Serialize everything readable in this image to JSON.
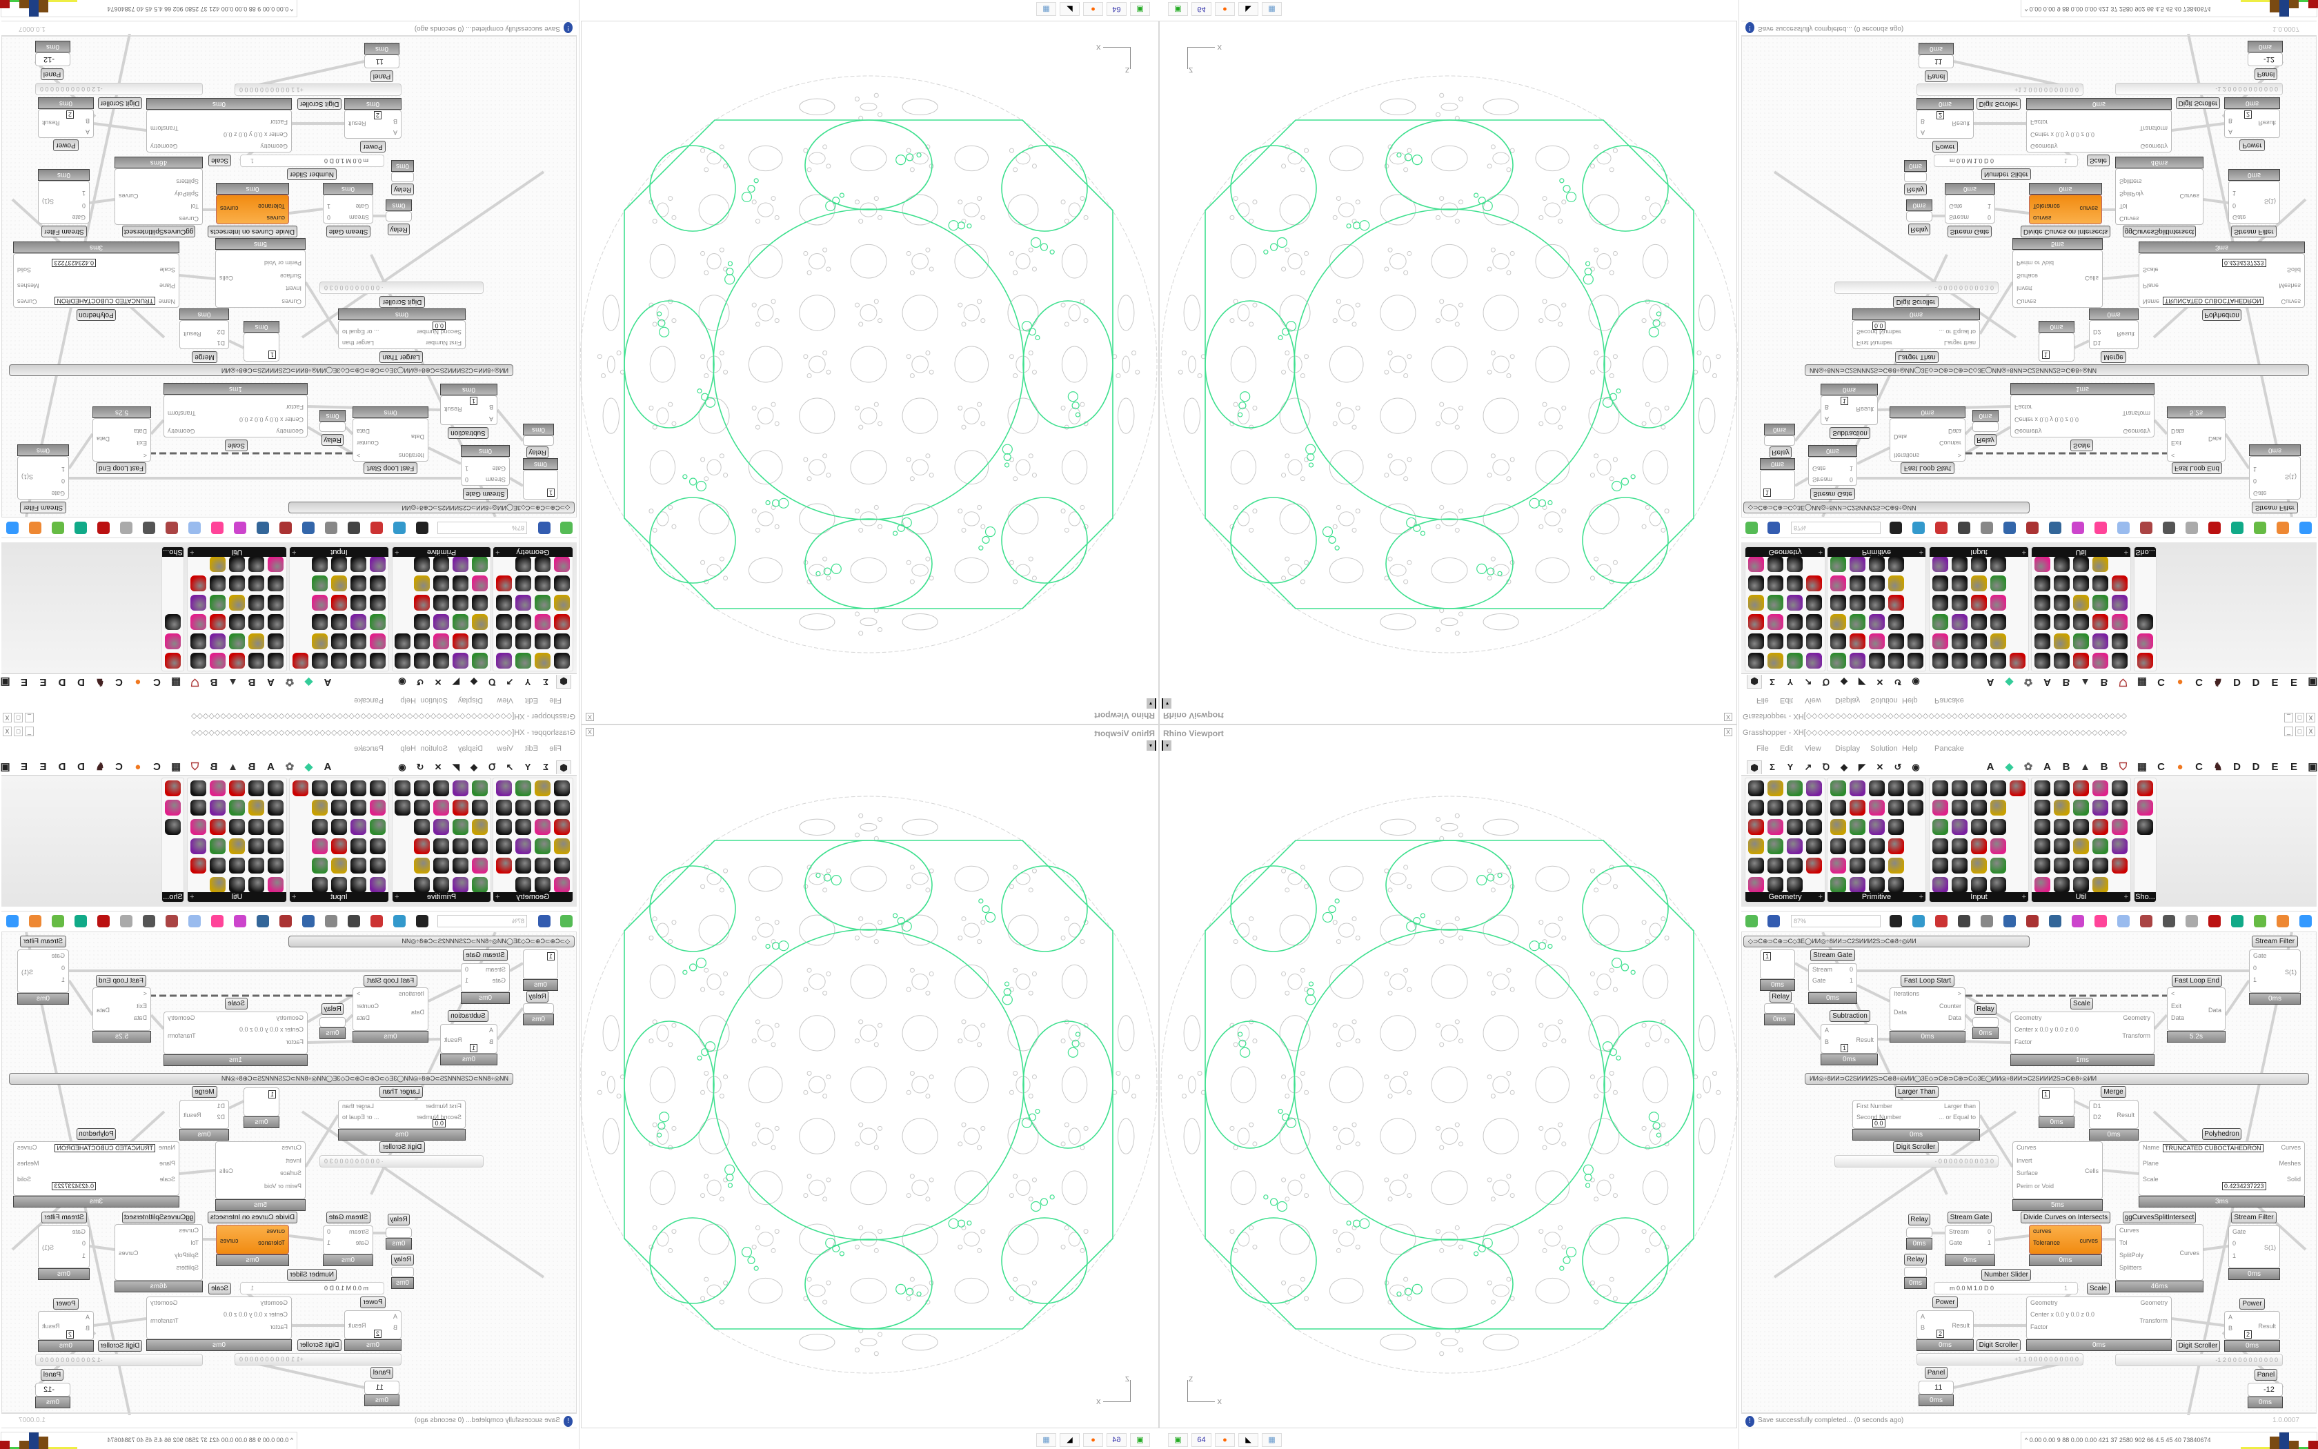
{
  "viewport": {
    "title": "Rhino Viewport",
    "close": "X",
    "dropdown": "▾",
    "axis_z": "Z",
    "axis_x": "X"
  },
  "taskbar": {
    "icons": [
      {
        "name": "terminal-icon",
        "glyph": "▣",
        "color": "#2a2"
      },
      {
        "name": "floppy-icon",
        "glyph": "64",
        "color": "#33a"
      },
      {
        "name": "firefox-icon",
        "glyph": "●",
        "color": "#f60"
      },
      {
        "name": "rhino-icon",
        "glyph": "◣",
        "color": "#000"
      },
      {
        "name": "calculator-icon",
        "glyph": "▦",
        "color": "#69c"
      }
    ]
  },
  "gh": {
    "title": "Grasshopper - XH[◇◇◇◇◇◇◇◇◇◇◇◇◇◇◇◇◇◇◇◇◇◇◇◇◇◇◇◇◇◇◇◇◇◇◇◇◇◇◇◇◇◇◇◇◇◇◇◇◇◇◇◇◇◇◇",
    "window_buttons": [
      "_",
      "□",
      "X"
    ],
    "menu": [
      "File",
      "Edit",
      "View",
      "Display",
      "Solution",
      "Help",
      "Pancake"
    ],
    "tab_icons": [
      "params-icon",
      "maths-icon",
      "sets-icon",
      "vector-icon",
      "curve-icon",
      "surface-icon",
      "mesh-icon",
      "intersect-icon",
      "transform-icon",
      "display-icon"
    ],
    "tab_icon_glyphs": [
      "⬢",
      "Σ",
      "Y",
      "↗",
      "Ꝺ",
      "◆",
      "◤",
      "✕",
      "↺",
      "◉"
    ],
    "tabs_right": [
      {
        "label": "A"
      },
      {
        "icon": "leaf-icon",
        "glyph": "◆",
        "color": "#3c9"
      },
      {
        "icon": "spider-icon",
        "glyph": "✿",
        "color": "#666"
      },
      {
        "label": "A"
      },
      {
        "label": "B"
      },
      {
        "icon": "terrain-icon",
        "glyph": "▲",
        "color": "#333"
      },
      {
        "label": "B"
      },
      {
        "icon": "shield-icon",
        "glyph": "⛉",
        "color": "#a33"
      },
      {
        "icon": "grid-icon",
        "glyph": "▦",
        "color": "#333"
      },
      {
        "label": "C"
      },
      {
        "icon": "orange-dot-icon",
        "glyph": "●",
        "color": "#f07820"
      },
      {
        "label": "C"
      },
      {
        "icon": "rooster-icon",
        "glyph": "♞",
        "color": "#422"
      },
      {
        "label": "D"
      },
      {
        "label": "D"
      },
      {
        "label": "E"
      },
      {
        "label": "E"
      },
      {
        "icon": "frame-icon",
        "glyph": "▣",
        "color": "#222"
      }
    ],
    "ribbon_panels": [
      "Geometry",
      "Primitive",
      "Input",
      "Util",
      "Sho..."
    ],
    "ribbon_panel_expand": "+",
    "toolbar": {
      "zoom": "87%"
    },
    "canvas": {
      "groups": [
        "◇⊃C⊕⊃C⊕⊃C◇3E◯ИИ◎÷8ИИ⊃C2SИИИ2S⊃C⊕8÷◎ИИ",
        "ИИ◎÷8ИИ⊃C2SИИИ2S⊃C⊕8÷◎ИИ◯3E◇⊃C⊕⊃C⊕⊃C◇3E◯ИИ◎÷8ИИ⊃C2SИИИ2S⊃C⊕8÷◎ИИ"
      ],
      "nodes": [
        {
          "caption": "Stream Gate",
          "inputs": [
            "Stream",
            "Gate"
          ],
          "outputs": [
            "0",
            "1"
          ],
          "timing": "0ms"
        },
        {
          "caption": "",
          "inputs": [],
          "outputs": [],
          "value": "1",
          "timing": "0ms"
        },
        {
          "caption": "Relay",
          "inputs": [],
          "outputs": [],
          "timing": "0ms"
        },
        {
          "caption": "Fast Loop Start",
          "inputs": [
            "Iterations",
            "Data"
          ],
          "outputs": [
            ">",
            "Counter",
            "Data"
          ],
          "timing": "0ms"
        },
        {
          "caption": "Relay",
          "inputs": [],
          "outputs": [],
          "timing": "0ms"
        },
        {
          "caption": "Subtraction",
          "inputs": [
            "A",
            "B"
          ],
          "outputs": [
            "Result"
          ],
          "value": "1",
          "timing": "0ms"
        },
        {
          "caption": "Scale",
          "inputs": [
            "Geometry",
            "Center x 0.0 y 0.0 z 0.0",
            "Factor"
          ],
          "outputs": [
            "Geometry",
            "Transform"
          ],
          "timing": "1ms"
        },
        {
          "caption": "Fast Loop End",
          "inputs": [
            "<",
            "Exit",
            "Data"
          ],
          "outputs": [
            "Data"
          ],
          "timing": "5.2s"
        },
        {
          "caption": "Stream Filter",
          "inputs": [
            "Gate",
            "0",
            "1"
          ],
          "outputs": [
            "S(1)"
          ],
          "timing": "0ms"
        },
        {
          "caption": "Larger Than",
          "inputs": [
            "First Number",
            "Second Number"
          ],
          "outputs": [
            "Larger than",
            "... or Equal to"
          ],
          "value": "0.0",
          "timing": "0ms"
        },
        {
          "caption": "ggNetworkPatch",
          "inputs": [],
          "outputs": [],
          "value": "1",
          "timing": "0ms"
        },
        {
          "caption": "Merge",
          "inputs": [
            "D1",
            "D2"
          ],
          "outputs": [
            "Result"
          ],
          "timing": "0ms"
        },
        {
          "caption": "Polyhedron",
          "inputs": [
            "Name",
            "Plane",
            "Scale"
          ],
          "outputs": [
            "Curves",
            "Meshes",
            "Solid"
          ],
          "value": "TRUNCATED CUBOCTAHEDRON",
          "value2": "0.4234237223",
          "timing": "3ms"
        },
        {
          "caption": "",
          "inputs": [
            "Curves",
            "Invert",
            "Surface",
            "Perim or Void"
          ],
          "outputs": [
            "Cells"
          ],
          "timing": "5ms"
        },
        {
          "caption": "Relay",
          "inputs": [],
          "outputs": [],
          "timing": "0ms"
        },
        {
          "caption": "Stream Gate",
          "inputs": [
            "Stream",
            "Gate"
          ],
          "outputs": [
            "0",
            "1"
          ],
          "timing": "0ms"
        },
        {
          "caption": "Relay",
          "inputs": [],
          "outputs": [],
          "timing": "0ms"
        },
        {
          "caption": "Divide Curves on Intersects",
          "inputs": [
            "curves",
            "Tolerance"
          ],
          "outputs": [
            "curves"
          ],
          "timing": "0ms",
          "orange": true
        },
        {
          "caption": "ggCurvesSplitIntersect",
          "inputs": [
            "Curves",
            "Tol",
            "SplitPoly",
            "Splitters"
          ],
          "outputs": [
            "Curves"
          ],
          "timing": "46ms"
        },
        {
          "caption": "Stream Filter",
          "inputs": [
            "Gate",
            "0",
            "1"
          ],
          "outputs": [
            "S(1)"
          ],
          "timing": "0ms"
        },
        {
          "caption": "Scale",
          "inputs": [
            "Geometry",
            "Center x 0.0 y 0.0 z 0.0",
            "Factor"
          ],
          "outputs": [
            "Geometry",
            "Transform"
          ],
          "timing": "0ms"
        },
        {
          "caption": "Power",
          "inputs": [
            "A",
            "B"
          ],
          "outputs": [
            "Result"
          ],
          "value": "2",
          "timing": "0ms"
        },
        {
          "caption": "Power",
          "inputs": [
            "A",
            "B"
          ],
          "outputs": [
            "Result"
          ],
          "value": "2",
          "timing": "0ms"
        },
        {
          "caption": "Panel",
          "inputs": [],
          "outputs": [],
          "value": "11",
          "timing": "0ms"
        },
        {
          "caption": "Panel",
          "inputs": [],
          "outputs": [],
          "value": "-12",
          "timing": "0ms"
        }
      ],
      "slider": {
        "caption": "Number Slider",
        "text": "m 0.0  M 1.0  D 0",
        "value": "1"
      },
      "scrollers": [
        {
          "caption": "Digit Scroller",
          "digits": "· 0 0 0 0 0 0 0 0 0 3 0"
        },
        {
          "caption": "Digit Scroller",
          "digits": "+1 1 0 0 0 0 0 0 0 0 0 0"
        },
        {
          "caption": "Digit Scroller",
          "digits": "-1 2 0 0 0 0 0 0 0 0 0 0"
        }
      ]
    },
    "status": {
      "message": "Save successfully completed... (0 seconds ago)",
      "version": "1.0.0007"
    },
    "perf": "^  0.00 0.00   9    88   0.00 0.00 421   37   2580 902   66   4.5   45   40  73840674"
  },
  "colors": {
    "accent_green": "#3fe08f",
    "component_orange": "#f7941d",
    "dome_gray": "#c8c8c8"
  }
}
